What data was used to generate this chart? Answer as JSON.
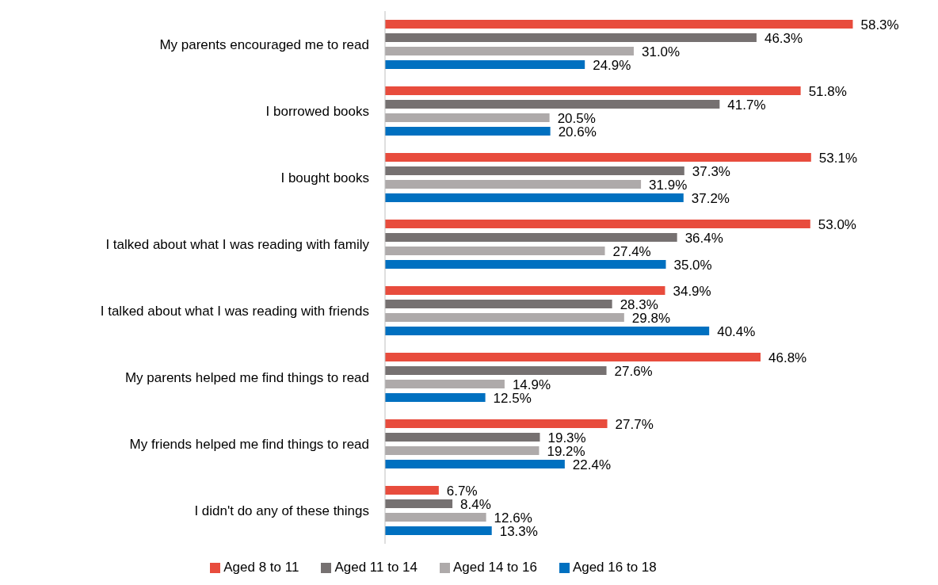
{
  "chart_data": {
    "type": "bar",
    "orientation": "horizontal",
    "categories": [
      "My parents encouraged me to read",
      "I borrowed books",
      "I bought books",
      "I talked about what I was reading with family",
      "I talked about what I was reading with friends",
      "My parents helped me find things to read",
      "My friends helped me find things to read",
      "I didn't do any of these things"
    ],
    "series": [
      {
        "name": "Aged 8 to 11",
        "color": "#e84c3d",
        "values": [
          58.3,
          51.8,
          53.1,
          53.0,
          34.9,
          46.8,
          27.7,
          6.7
        ],
        "value_labels": [
          "58.3%",
          "51.8%",
          "53.1%",
          "53.0%",
          "34.9%",
          "46.8%",
          "27.7%",
          "6.7%"
        ]
      },
      {
        "name": "Aged 11 to 14",
        "color": "#767171",
        "values": [
          46.3,
          41.7,
          37.3,
          36.4,
          28.3,
          27.6,
          19.3,
          8.4
        ],
        "value_labels": [
          "46.3%",
          "41.7%",
          "37.3%",
          "36.4%",
          "28.3%",
          "27.6%",
          "19.3%",
          "8.4%"
        ]
      },
      {
        "name": "Aged 14 to 16",
        "color": "#aeaaaa",
        "values": [
          31.0,
          20.5,
          31.9,
          27.4,
          29.8,
          14.9,
          19.2,
          12.6
        ],
        "value_labels": [
          "31.0%",
          "20.5%",
          "31.9%",
          "27.4%",
          "29.8%",
          "14.9%",
          "19.2%",
          "12.6%"
        ]
      },
      {
        "name": "Aged 16 to 18",
        "color": "#0070c0",
        "values": [
          24.9,
          20.6,
          37.2,
          35.0,
          40.4,
          12.5,
          22.4,
          13.3
        ],
        "value_labels": [
          "24.9%",
          "20.6%",
          "37.2%",
          "35.0%",
          "40.4%",
          "12.5%",
          "22.4%",
          "13.3%"
        ]
      }
    ],
    "tick_labels": "y",
    "legend": "bottom"
  }
}
